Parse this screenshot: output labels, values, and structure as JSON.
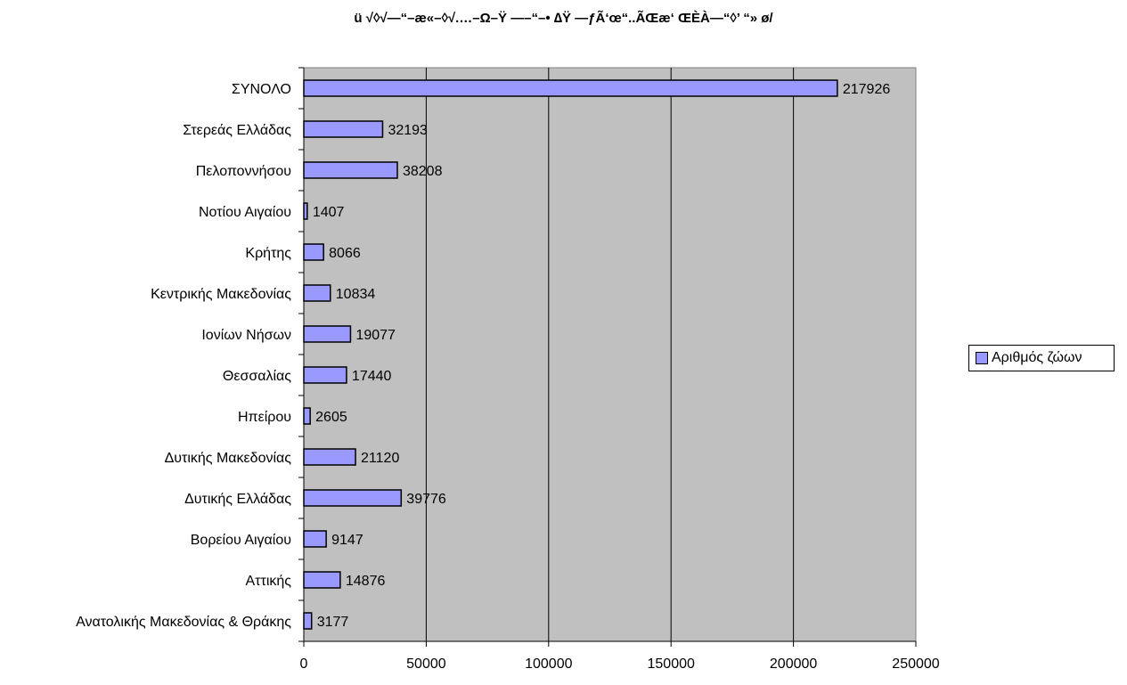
{
  "chart_data": {
    "type": "bar",
    "orientation": "horizontal",
    "title": "ü √◊√—“–æ«–◊√.…–Ω–Ÿ —–“–• ∆Ÿ —ƒÃ‘œ“..ÃŒæ‘ ŒÈÀ—“◊’ “» ø/",
    "xlim": [
      0,
      250000
    ],
    "xticks": [
      0,
      50000,
      100000,
      150000,
      200000,
      250000
    ],
    "grid": true,
    "legend_position": "right",
    "bar_color": "#9999ff",
    "plot_background": "#c0c0c0",
    "categories": [
      "ΣΥΝΟΛΟ",
      "Στερεάς Ελλάδας",
      "Πελοποννήσου",
      "Νοτίου Αιγαίου",
      "Κρήτης",
      "Κεντρικής Μακεδονίας",
      "Ιονίων Νήσων",
      "Θεσσαλίας",
      "Ηπείρου",
      "Δυτικής Μακεδονίας",
      "Δυτικής Ελλάδας",
      "Βορείου Αιγαίου",
      "Αττικής",
      "Ανατολικής Μακεδονίας & Θράκης"
    ],
    "series": [
      {
        "name": "Αριθμός ζώων",
        "values": [
          217926,
          32193,
          38208,
          1407,
          8066,
          10834,
          19077,
          17440,
          2605,
          21120,
          39776,
          9147,
          14876,
          3177
        ]
      }
    ]
  }
}
